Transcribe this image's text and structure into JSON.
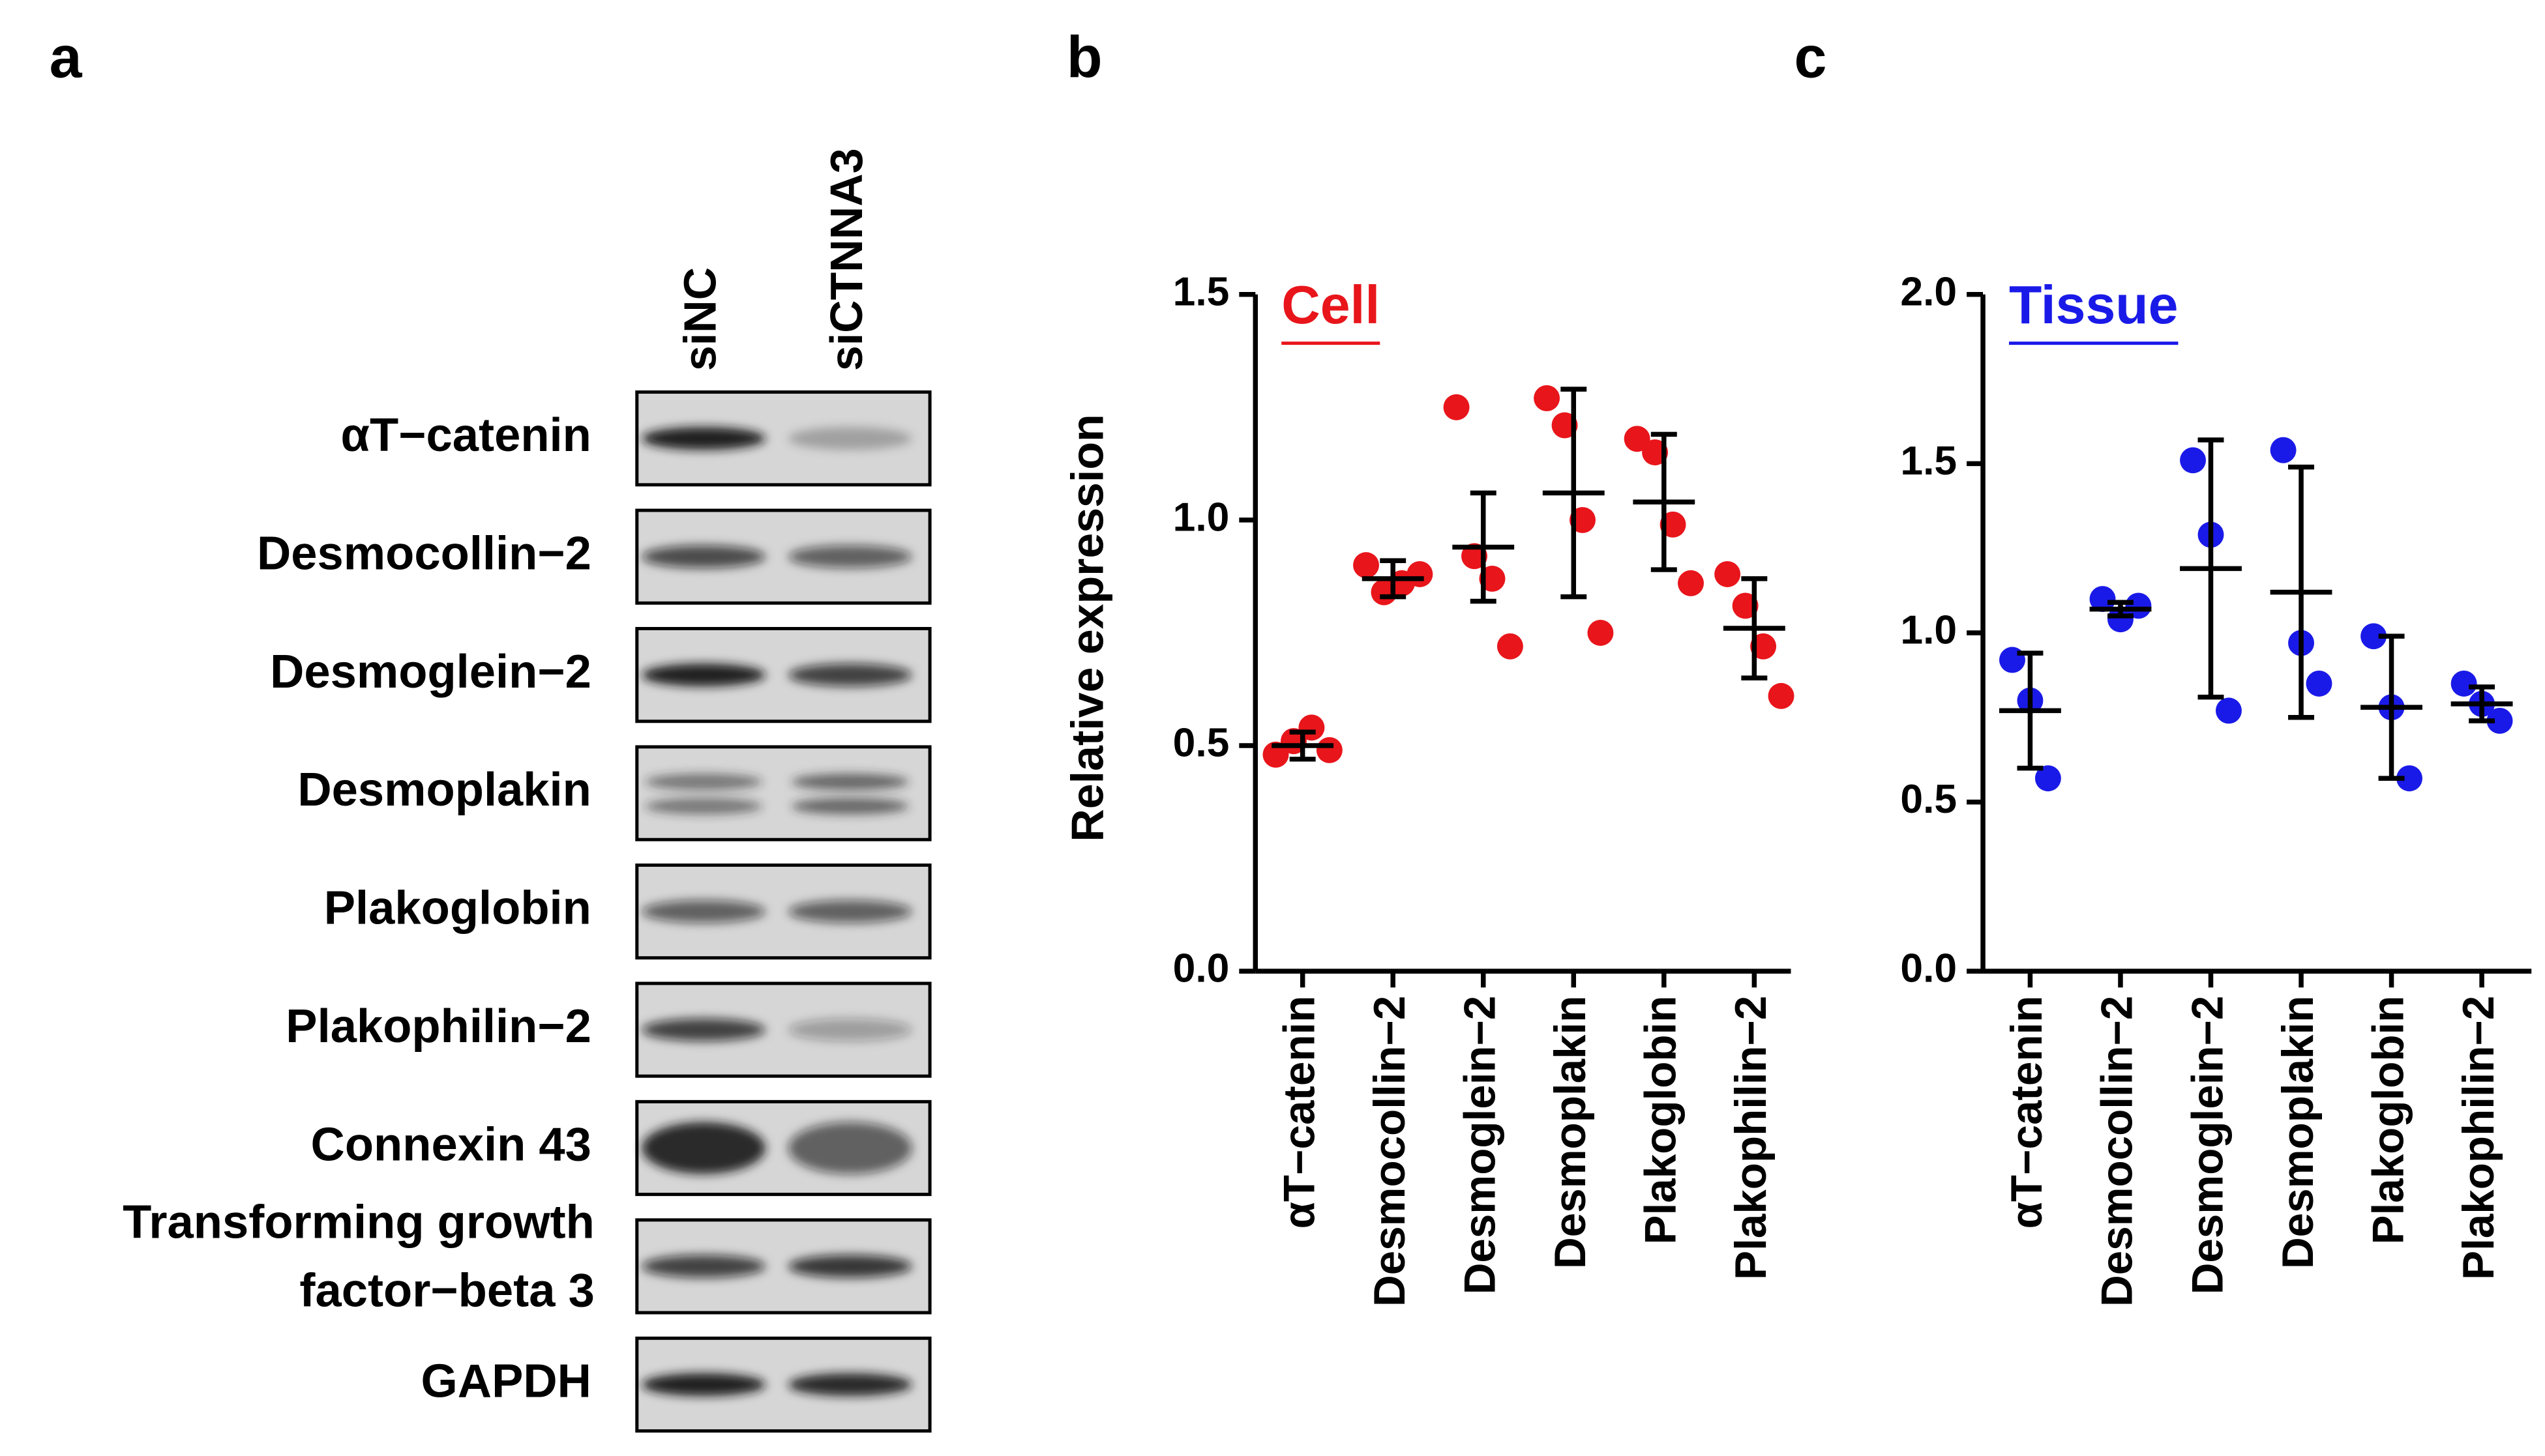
{
  "blot": {
    "panel_label": "a",
    "lanes": [
      "siNC",
      "siCTNNA3"
    ],
    "rows": [
      {
        "label": "αT−catenin"
      },
      {
        "label": "Desmocollin−2"
      },
      {
        "label": "Desmoglein−2"
      },
      {
        "label": "Desmoplakin"
      },
      {
        "label": "Plakoglobin"
      },
      {
        "label": "Plakophilin−2"
      },
      {
        "label": "Connexin 43"
      },
      {
        "label": [
          "Transforming growth",
          "factor−beta 3"
        ]
      },
      {
        "label": "GAPDH"
      }
    ]
  },
  "chart_data": [
    {
      "type": "dot",
      "panel_label": "b",
      "annotation": "Cell",
      "color": "#e8151b",
      "ylabel": "Relative expression",
      "categories": [
        "αT−catenin",
        "Desmocollin−2",
        "Desmoglein−2",
        "Desmoplakin",
        "Plakoglobin",
        "Plakophilin−2"
      ],
      "values": [
        [
          0.48,
          0.51,
          0.54,
          0.49
        ],
        [
          0.9,
          0.84,
          0.86,
          0.88
        ],
        [
          1.25,
          0.92,
          0.87,
          0.72
        ],
        [
          1.27,
          1.21,
          1.0,
          0.75
        ],
        [
          1.18,
          1.15,
          0.99,
          0.86
        ],
        [
          0.88,
          0.81,
          0.72,
          0.61
        ]
      ],
      "means": [
        0.5,
        0.87,
        0.94,
        1.06,
        1.04,
        0.76
      ],
      "sd": [
        0.03,
        0.04,
        0.12,
        0.23,
        0.15,
        0.11
      ],
      "ylim": [
        0,
        1.5
      ],
      "yticks": [
        {
          "value": 0,
          "label": "0.0"
        },
        0.5,
        {
          "value": 1,
          "label": "1.0"
        },
        1.5
      ]
    },
    {
      "type": "dot",
      "panel_label": "c",
      "annotation": "Tissue",
      "color": "#1a1ae8",
      "categories": [
        "αT−catenin",
        "Desmocollin−2",
        "Desmoglein−2",
        "Desmoplakin",
        "Plakoglobin",
        "Plakophilin−2"
      ],
      "values": [
        [
          0.92,
          0.8,
          0.57
        ],
        [
          1.1,
          1.04,
          1.08
        ],
        [
          1.51,
          1.29,
          0.77
        ],
        [
          1.54,
          0.97,
          0.85
        ],
        [
          0.99,
          0.78,
          0.57
        ],
        [
          0.85,
          0.79,
          0.74
        ]
      ],
      "means": [
        0.77,
        1.07,
        1.19,
        1.12,
        0.78,
        0.79
      ],
      "sd": [
        0.17,
        0.02,
        0.38,
        0.37,
        0.21,
        0.05
      ],
      "ylim": [
        0,
        2
      ],
      "yticks": [
        {
          "value": 0,
          "label": "0.0"
        },
        0.5,
        {
          "value": 1,
          "label": "1.0"
        },
        1.5,
        {
          "value": 2,
          "label": "2.0"
        }
      ]
    }
  ]
}
